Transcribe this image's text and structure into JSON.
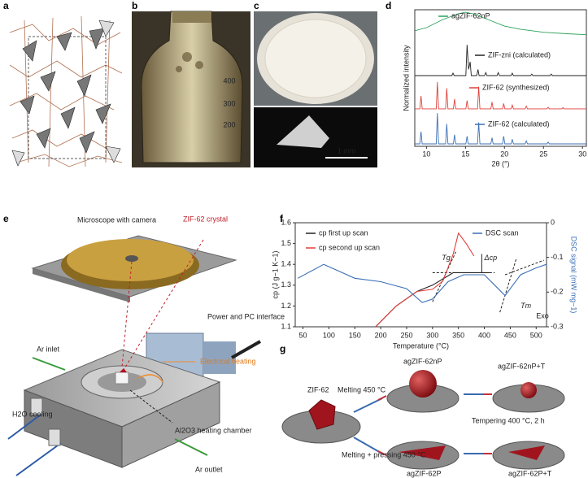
{
  "panel_labels": [
    "a",
    "b",
    "c",
    "d",
    "e",
    "f",
    "g"
  ],
  "photo_b": {
    "marks": [
      "400",
      "300",
      "200"
    ]
  },
  "photo_c": {
    "scale_bar": "1 mm"
  },
  "panel_e": {
    "labels": [
      "Microscope with camera",
      "ZIF-62 crystal",
      "Power and PC interface",
      "Ar inlet",
      "Electrical heating",
      "Al2O3 heating chamber",
      "H2O cooling",
      "Ar outlet"
    ]
  },
  "panel_g": {
    "labels": [
      "ZIF-62",
      "Melting 450 °C",
      "agZIF-62nP",
      "agZIF-62nP+T",
      "Tempering 400 °C, 2 h",
      "Melting + pressing 450 °C",
      "agZIF-62P",
      "agZIF-62P+T"
    ]
  },
  "chart_data": [
    {
      "type": "line",
      "xlabel": "2θ (°)",
      "ylabel": "Normalized intensity",
      "xlim": [
        8.5,
        30.5
      ],
      "xticks": [
        10,
        15,
        20,
        25,
        30
      ],
      "ylim": [
        0,
        1
      ],
      "series": [
        {
          "name": "agZIF-62nP",
          "color": "#2ca05a",
          "x": [
            8.5,
            10,
            12,
            14,
            15,
            16,
            18,
            20,
            22,
            25,
            28,
            30.5
          ],
          "values": [
            0.35,
            0.45,
            0.7,
            0.9,
            0.95,
            0.9,
            0.7,
            0.5,
            0.4,
            0.3,
            0.25,
            0.22
          ]
        },
        {
          "name": "ZIF-zni (calculated)",
          "color": "#222222",
          "x": [
            8.5,
            13.25,
            13.4,
            13.55,
            15.05,
            15.2,
            15.4,
            15.6,
            15.75,
            16.45,
            16.6,
            16.75,
            17.45,
            17.6,
            17.75,
            19.05,
            19.2,
            19.35,
            20.85,
            21,
            21.15,
            23.35,
            23.5,
            23.65,
            25.85,
            26,
            26.15,
            30.5
          ],
          "values": [
            0,
            0,
            0.08,
            0,
            0,
            1,
            0.2,
            0.45,
            0,
            0,
            0.2,
            0,
            0,
            0.1,
            0,
            0,
            0.1,
            0,
            0,
            0.08,
            0,
            0,
            0.05,
            0,
            0,
            0.05,
            0,
            0
          ]
        },
        {
          "name": "ZIF-62 (synthesized)",
          "color": "#e0403a",
          "x": [
            8.5,
            9.15,
            9.3,
            9.45,
            11.25,
            11.4,
            11.55,
            12.45,
            12.6,
            12.75,
            13.45,
            13.6,
            13.75,
            15.05,
            15.2,
            15.35,
            16.55,
            16.7,
            16.85,
            18.25,
            18.4,
            18.55,
            19.75,
            19.9,
            20.05,
            20.85,
            21,
            21.15,
            22.65,
            22.8,
            22.95,
            25.45,
            25.6,
            25.75,
            27.35,
            27.5,
            27.65,
            30.5
          ],
          "values": [
            0.03,
            0.03,
            0.45,
            0.03,
            0.03,
            0.9,
            0.03,
            0.03,
            0.7,
            0.03,
            0.03,
            0.35,
            0.03,
            0.03,
            0.3,
            0.03,
            0.03,
            0.75,
            0.03,
            0.03,
            0.25,
            0.03,
            0.03,
            0.2,
            0.03,
            0.03,
            0.15,
            0.03,
            0.03,
            0.12,
            0.03,
            0.03,
            0.08,
            0.03,
            0.03,
            0.07,
            0.03,
            0.03
          ]
        },
        {
          "name": "ZIF-62 (calculated)",
          "color": "#3b6fb6",
          "x": [
            8.5,
            9.15,
            9.3,
            9.45,
            11.25,
            11.4,
            11.55,
            12.45,
            12.6,
            12.75,
            13.45,
            13.6,
            13.75,
            15.05,
            15.2,
            15.35,
            16.55,
            16.7,
            16.85,
            18.25,
            18.4,
            18.55,
            19.75,
            19.9,
            20.05,
            20.85,
            21,
            21.15,
            22.65,
            22.8,
            22.95,
            25.45,
            25.6,
            25.75,
            30.5
          ],
          "values": [
            0,
            0,
            0.4,
            0,
            0,
            1,
            0,
            0,
            0.65,
            0,
            0,
            0.3,
            0,
            0,
            0.25,
            0,
            0,
            0.7,
            0,
            0,
            0.2,
            0,
            0,
            0.25,
            0,
            0,
            0.15,
            0,
            0,
            0.1,
            0,
            0,
            0.06,
            0,
            0
          ]
        }
      ]
    },
    {
      "type": "line",
      "xlabel": "Temperature (°C)",
      "ylabel": "cp (J g−1 K−1)",
      "y2label": "DSC signal (mW mg−1)",
      "xlim": [
        35,
        520
      ],
      "xticks": [
        50,
        100,
        150,
        200,
        250,
        300,
        350,
        400,
        450,
        500
      ],
      "ylim": [
        1.1,
        1.6
      ],
      "yticks": [
        1.1,
        1.2,
        1.3,
        1.4,
        1.5,
        1.6
      ],
      "y2lim": [
        -0.3,
        0
      ],
      "y2ticks": [
        0,
        -0.1,
        -0.2,
        -0.3
      ],
      "annotations": [
        "Tg",
        "Δcp",
        "Tm",
        "Exo"
      ],
      "series": [
        {
          "name": "cp first up scan",
          "color": "#222222",
          "x": [
            190,
            230,
            270,
            300,
            320,
            340,
            360,
            400,
            410
          ],
          "values": [
            1.1,
            1.2,
            1.27,
            1.3,
            1.33,
            1.36,
            1.36,
            1.36,
            1.36
          ]
        },
        {
          "name": "cp second up scan",
          "color": "#e0403a",
          "x": [
            190,
            230,
            270,
            300,
            320,
            340,
            350,
            365,
            380
          ],
          "values": [
            1.1,
            1.2,
            1.27,
            1.28,
            1.32,
            1.45,
            1.55,
            1.5,
            1.44
          ]
        },
        {
          "name": "DSC scan",
          "color": "#3b6fb6",
          "axis": "y2",
          "x": [
            40,
            90,
            120,
            150,
            200,
            250,
            280,
            300,
            330,
            360,
            400,
            420,
            440,
            450,
            470,
            500,
            520
          ],
          "values": [
            -0.16,
            -0.12,
            -0.14,
            -0.16,
            -0.17,
            -0.19,
            -0.23,
            -0.22,
            -0.17,
            -0.15,
            -0.15,
            -0.18,
            -0.21,
            -0.19,
            -0.15,
            -0.13,
            -0.12
          ]
        }
      ]
    }
  ]
}
